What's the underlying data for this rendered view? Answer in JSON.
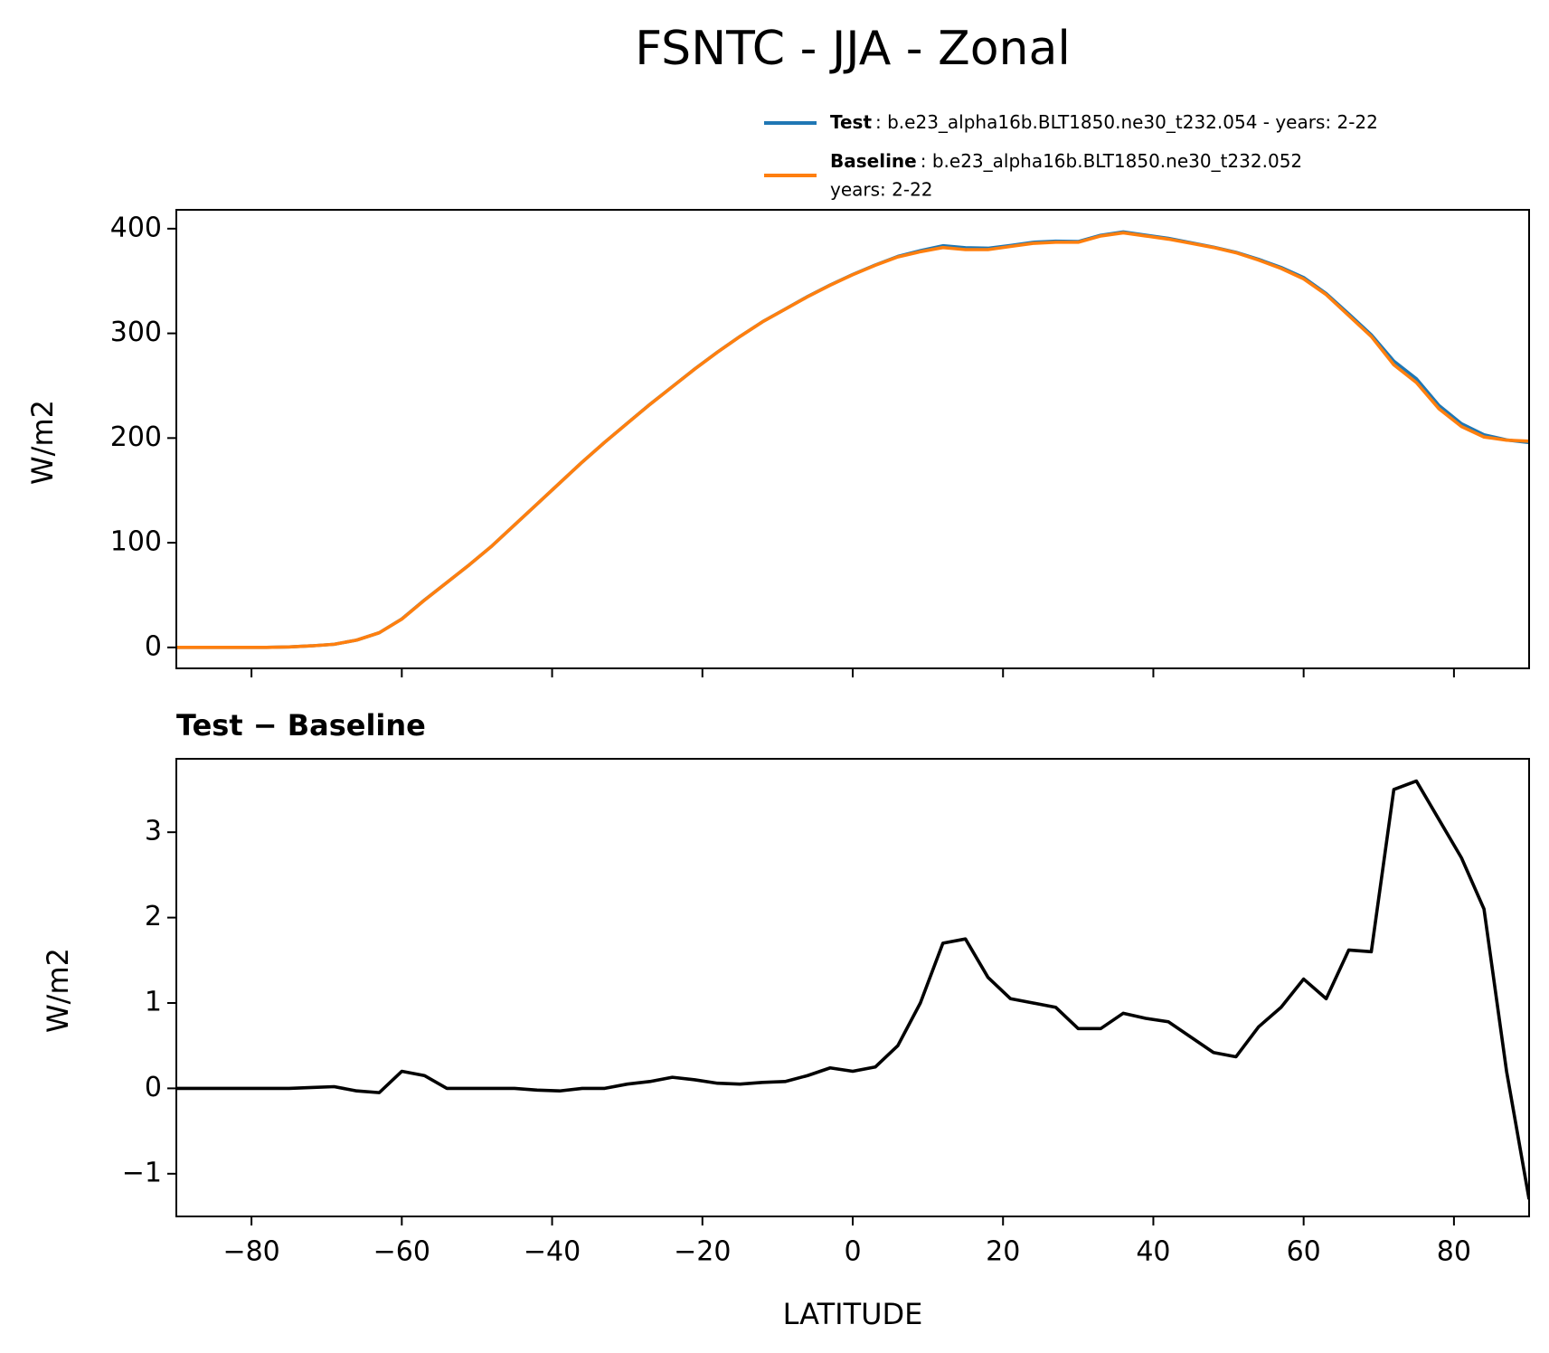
{
  "chart_data": [
    {
      "type": "line",
      "title": "FSNTC - JJA - Zonal",
      "ylabel": "W/m2",
      "x": [
        -90,
        -87,
        -84,
        -81,
        -78,
        -75,
        -72,
        -69,
        -66,
        -63,
        -60,
        -57,
        -54,
        -51,
        -48,
        -45,
        -42,
        -39,
        -36,
        -33,
        -30,
        -27,
        -24,
        -21,
        -18,
        -15,
        -12,
        -9,
        -6,
        -3,
        0,
        3,
        6,
        9,
        12,
        15,
        18,
        21,
        24,
        27,
        30,
        33,
        36,
        39,
        42,
        45,
        48,
        51,
        54,
        57,
        60,
        63,
        66,
        69,
        72,
        75,
        78,
        81,
        84,
        87,
        90
      ],
      "series": [
        {
          "name": "Test",
          "label": [
            ": b.e23_alpha16b.BLT1850.ne30_t232.054 - years: 2-22"
          ],
          "color": "#1f77b4",
          "values": [
            0,
            0,
            0,
            0,
            0,
            0.5,
            1.5,
            3,
            7,
            14,
            27.2,
            45.2,
            62,
            79,
            97,
            117,
            137,
            157,
            177,
            196,
            214.1,
            232.1,
            249.1,
            266.1,
            282.1,
            297.1,
            311.1,
            323.1,
            335.2,
            346.2,
            356.2,
            365.3,
            373.5,
            379,
            383.7,
            381.8,
            381.3,
            384,
            387,
            388,
            387.7,
            393.7,
            396.9,
            393.8,
            390.8,
            386.6,
            382.4,
            377.4,
            370.7,
            363,
            353.3,
            338,
            318.6,
            298.6,
            273.5,
            256.6,
            231.2,
            213.7,
            203.1,
            198.2,
            195.7
          ]
        },
        {
          "name": "Baseline",
          "label": [
            ": b.e23_alpha16b.BLT1850.ne30_t232.052",
            "years: 2-22"
          ],
          "color": "#ff7f0e",
          "values": [
            0,
            0,
            0,
            0,
            0,
            0.5,
            1.5,
            3,
            7,
            14,
            27,
            45,
            62,
            79,
            97,
            117,
            137,
            157,
            177,
            196,
            214,
            232,
            249,
            266,
            282,
            297,
            311,
            323,
            335,
            346,
            356,
            365,
            373,
            378,
            382,
            380,
            380,
            383,
            386,
            387,
            387,
            393,
            396,
            393,
            390,
            386,
            382,
            377,
            370,
            362,
            352,
            337,
            317,
            297,
            270,
            253,
            228,
            211,
            201,
            198,
            197
          ]
        }
      ],
      "xlim": [
        -90,
        90
      ],
      "xticks": [
        -80,
        -60,
        -40,
        -20,
        0,
        20,
        40,
        60,
        80
      ],
      "ylim": [
        -20,
        418
      ],
      "yticks": [
        0,
        100,
        200,
        300,
        400
      ]
    },
    {
      "type": "line",
      "title": "Test − Baseline",
      "ylabel": "W/m2",
      "xlabel": "LATITUDE",
      "x": [
        -90,
        -87,
        -84,
        -81,
        -78,
        -75,
        -72,
        -69,
        -66,
        -63,
        -60,
        -57,
        -54,
        -51,
        -48,
        -45,
        -42,
        -39,
        -36,
        -33,
        -30,
        -27,
        -24,
        -21,
        -18,
        -15,
        -12,
        -9,
        -6,
        -3,
        0,
        3,
        6,
        9,
        12,
        15,
        18,
        21,
        24,
        27,
        30,
        33,
        36,
        39,
        42,
        45,
        48,
        51,
        54,
        57,
        60,
        63,
        66,
        69,
        72,
        75,
        78,
        81,
        84,
        87,
        90
      ],
      "series": [
        {
          "color": "#000000",
          "values": [
            0,
            0,
            0,
            0,
            0,
            0,
            0.01,
            0.02,
            -0.03,
            -0.05,
            0.2,
            0.15,
            0,
            0,
            0,
            0,
            -0.02,
            -0.03,
            0,
            0,
            0.05,
            0.08,
            0.13,
            0.1,
            0.06,
            0.05,
            0.07,
            0.08,
            0.15,
            0.24,
            0.2,
            0.25,
            0.5,
            1.0,
            1.7,
            1.75,
            1.3,
            1.05,
            1.0,
            0.95,
            0.7,
            0.7,
            0.88,
            0.82,
            0.78,
            0.6,
            0.42,
            0.37,
            0.72,
            0.95,
            1.28,
            1.05,
            1.62,
            1.6,
            3.5,
            3.6,
            3.15,
            2.7,
            2.1,
            0.2,
            -1.3
          ]
        }
      ],
      "xlim": [
        -90,
        90
      ],
      "xticks": [
        {
          "value": -80,
          "label": "−80"
        },
        {
          "value": -60,
          "label": "−60"
        },
        {
          "value": -40,
          "label": "−40"
        },
        {
          "value": -20,
          "label": "−20"
        },
        0,
        20,
        40,
        60,
        80
      ],
      "ylim": [
        -1.5,
        3.86
      ],
      "yticks": [
        {
          "value": -1,
          "label": "−1"
        },
        0,
        1,
        2,
        3
      ]
    }
  ]
}
